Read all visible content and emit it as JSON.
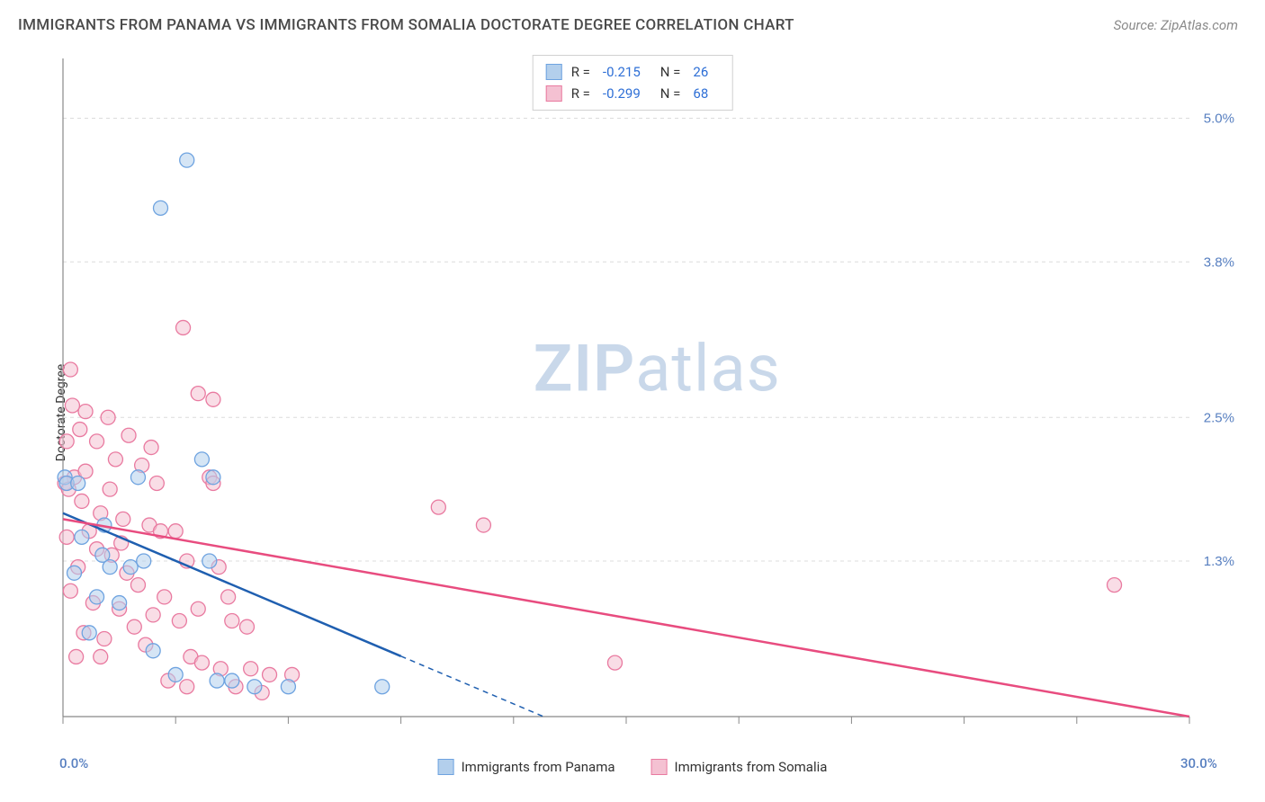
{
  "title": "IMMIGRANTS FROM PANAMA VS IMMIGRANTS FROM SOMALIA DOCTORATE DEGREE CORRELATION CHART",
  "source": "Source: ZipAtlas.com",
  "ylabel": "Doctorate Degree",
  "watermark": {
    "bold": "ZIP",
    "light": "atlas",
    "color": "#c9d8ea"
  },
  "colors": {
    "blue_stroke": "#6ea3e0",
    "blue_fill": "#b3cfec",
    "pink_stroke": "#e97aa0",
    "pink_fill": "#f4c1d2",
    "blue_line": "#1f5fb0",
    "pink_line": "#e84c7f",
    "grid": "#dcdcdc",
    "axis": "#888888",
    "tick_text": "#577fc0",
    "legend_val": "#2e6fd6"
  },
  "axes": {
    "x": {
      "min": 0.0,
      "max": 30.0,
      "ticks": [
        0,
        3,
        6,
        9,
        12,
        15,
        18,
        21,
        24,
        27,
        30
      ],
      "corner_min": "0.0%",
      "corner_max": "30.0%"
    },
    "y": {
      "min": 0.0,
      "max": 5.5,
      "gridlines": [
        1.3,
        2.5,
        3.8,
        5.0
      ],
      "labels": [
        "1.3%",
        "2.5%",
        "3.8%",
        "5.0%"
      ]
    }
  },
  "legend_top": [
    {
      "swatch": "blue",
      "r_label": "R =",
      "r_val": "-0.215",
      "n_label": "N =",
      "n_val": "26"
    },
    {
      "swatch": "pink",
      "r_label": "R =",
      "r_val": "-0.299",
      "n_label": "N =",
      "n_val": "68"
    }
  ],
  "legend_bottom": [
    {
      "swatch": "blue",
      "label": "Immigrants from Panama"
    },
    {
      "swatch": "pink",
      "label": "Immigrants from Somalia"
    }
  ],
  "marker_radius": 8,
  "series": {
    "panama": {
      "color_stroke": "#6ea3e0",
      "color_fill": "rgba(179,207,236,0.55)",
      "points": [
        [
          3.3,
          4.65
        ],
        [
          2.6,
          4.25
        ],
        [
          0.05,
          2.0
        ],
        [
          0.1,
          1.95
        ],
        [
          1.1,
          1.6
        ],
        [
          3.7,
          2.15
        ],
        [
          0.5,
          1.5
        ],
        [
          1.05,
          1.35
        ],
        [
          2.15,
          1.3
        ],
        [
          1.25,
          1.25
        ],
        [
          0.3,
          1.2
        ],
        [
          1.8,
          1.25
        ],
        [
          0.7,
          0.7
        ],
        [
          2.4,
          0.55
        ],
        [
          1.5,
          0.95
        ],
        [
          0.9,
          1.0
        ],
        [
          3.0,
          0.35
        ],
        [
          4.1,
          0.3
        ],
        [
          5.1,
          0.25
        ],
        [
          6.0,
          0.25
        ],
        [
          8.5,
          0.25
        ],
        [
          2.0,
          2.0
        ],
        [
          0.4,
          1.95
        ],
        [
          4.0,
          2.0
        ],
        [
          3.9,
          1.3
        ],
        [
          4.5,
          0.3
        ]
      ],
      "trend": {
        "y_at_x0": 1.7,
        "zero_at_x": 12.8,
        "dash_after_x": 9.0
      }
    },
    "somalia": {
      "color_stroke": "#e97aa0",
      "color_fill": "rgba(244,193,210,0.55)",
      "points": [
        [
          0.2,
          2.9
        ],
        [
          3.2,
          3.25
        ],
        [
          0.6,
          2.55
        ],
        [
          1.2,
          2.5
        ],
        [
          3.6,
          2.7
        ],
        [
          4.0,
          2.65
        ],
        [
          0.1,
          2.3
        ],
        [
          0.9,
          2.3
        ],
        [
          1.4,
          2.15
        ],
        [
          2.1,
          2.1
        ],
        [
          0.3,
          2.0
        ],
        [
          0.05,
          1.95
        ],
        [
          3.9,
          2.0
        ],
        [
          4.0,
          1.95
        ],
        [
          0.5,
          1.8
        ],
        [
          1.0,
          1.7
        ],
        [
          1.6,
          1.65
        ],
        [
          2.3,
          1.6
        ],
        [
          2.6,
          1.55
        ],
        [
          0.1,
          1.5
        ],
        [
          0.9,
          1.4
        ],
        [
          1.3,
          1.35
        ],
        [
          3.0,
          1.55
        ],
        [
          3.3,
          1.3
        ],
        [
          0.4,
          1.25
        ],
        [
          1.7,
          1.2
        ],
        [
          2.0,
          1.1
        ],
        [
          0.2,
          1.05
        ],
        [
          0.8,
          0.95
        ],
        [
          1.5,
          0.9
        ],
        [
          2.4,
          0.85
        ],
        [
          3.1,
          0.8
        ],
        [
          4.5,
          0.8
        ],
        [
          4.9,
          0.75
        ],
        [
          0.55,
          0.7
        ],
        [
          1.1,
          0.65
        ],
        [
          2.2,
          0.6
        ],
        [
          3.4,
          0.5
        ],
        [
          3.7,
          0.45
        ],
        [
          4.2,
          0.4
        ],
        [
          5.0,
          0.4
        ],
        [
          5.5,
          0.35
        ],
        [
          6.1,
          0.35
        ],
        [
          2.8,
          0.3
        ],
        [
          3.3,
          0.25
        ],
        [
          4.6,
          0.25
        ],
        [
          5.3,
          0.2
        ],
        [
          10.0,
          1.75
        ],
        [
          11.2,
          1.6
        ],
        [
          14.7,
          0.45
        ],
        [
          28.0,
          1.1
        ],
        [
          0.15,
          1.9
        ],
        [
          0.6,
          2.05
        ],
        [
          1.25,
          1.9
        ],
        [
          2.5,
          1.95
        ],
        [
          0.35,
          0.5
        ],
        [
          1.0,
          0.5
        ],
        [
          1.9,
          0.75
        ],
        [
          3.6,
          0.9
        ],
        [
          4.4,
          1.0
        ],
        [
          0.7,
          1.55
        ],
        [
          1.55,
          1.45
        ],
        [
          2.7,
          1.0
        ],
        [
          4.15,
          1.25
        ],
        [
          0.45,
          2.4
        ],
        [
          2.35,
          2.25
        ],
        [
          1.75,
          2.35
        ],
        [
          0.25,
          2.6
        ]
      ],
      "trend": {
        "y_at_x0": 1.65,
        "zero_at_x": 30.0,
        "dash_after_x": 30.0
      }
    }
  }
}
